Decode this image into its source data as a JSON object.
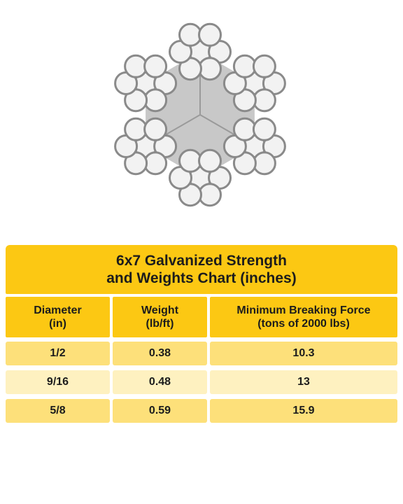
{
  "table": {
    "title_line1": "6x7 Galvanized Strength",
    "title_line2": "and Weights Chart (inches)",
    "headers": [
      {
        "line1": "Diameter",
        "line2": "(in)"
      },
      {
        "line1": "Weight",
        "line2": "(lb/ft)"
      },
      {
        "line1": "Minimum Breaking Force",
        "line2": "(tons of 2000 lbs)"
      }
    ],
    "rows": [
      [
        "1/2",
        "0.38",
        "10.3"
      ],
      [
        "9/16",
        "0.48",
        "13"
      ],
      [
        "5/8",
        "0.59",
        "15.9"
      ]
    ]
  },
  "colors": {
    "header_yellow": "#fcc813",
    "row_dark": "#fde07a",
    "row_light": "#fef1c0",
    "rope_core": "#c8c8c8",
    "wire_fill": "#f2f2f2",
    "wire_edge": "#8a8a8a"
  },
  "figure": {
    "icon": "wire-rope-cross-section-icon",
    "strands": 6,
    "wires_per_strand": 7
  }
}
